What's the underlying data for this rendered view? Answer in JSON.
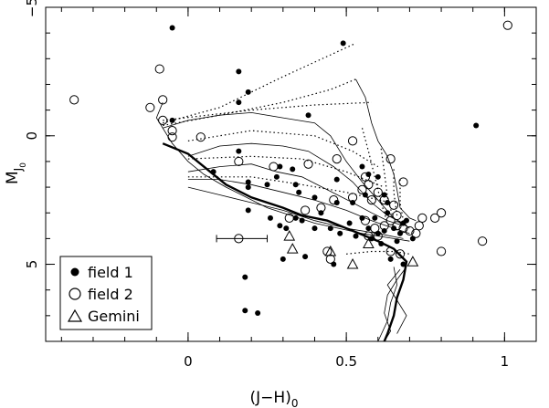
{
  "chart_data": {
    "type": "scatter",
    "title": "",
    "xlabel": "(J−H)",
    "xlabel_sub": "0",
    "ylabel": "M",
    "ylabel_sub": "J",
    "ylabel_subsub": "0",
    "xlim": [
      -0.45,
      1.1
    ],
    "ylim": [
      8,
      -5
    ],
    "y_inverted": true,
    "grid": false,
    "legend_position": "bottom-left",
    "x_ticks": [
      {
        "v": 0,
        "label": "0"
      },
      {
        "v": 0.5,
        "label": "0.5"
      },
      {
        "v": 1,
        "label": "1"
      }
    ],
    "y_ticks": [
      {
        "v": -5,
        "label": "−5"
      },
      {
        "v": 0,
        "label": "0"
      },
      {
        "v": 5,
        "label": "5"
      }
    ],
    "minor_x_step": 0.1,
    "minor_y_step": 1,
    "series": [
      {
        "name": "field 1",
        "marker": "filled-circle",
        "points": [
          [
            -0.05,
            -4.2
          ],
          [
            0.49,
            -3.6
          ],
          [
            0.16,
            -2.5
          ],
          [
            0.19,
            -1.7
          ],
          [
            0.16,
            -1.3
          ],
          [
            -0.05,
            -0.6
          ],
          [
            0.38,
            -0.8
          ],
          [
            0.91,
            -0.4
          ],
          [
            0.16,
            0.6
          ],
          [
            0.08,
            1.4
          ],
          [
            0.19,
            1.8
          ],
          [
            0.19,
            2.0
          ],
          [
            0.25,
            1.9
          ],
          [
            0.29,
            1.2
          ],
          [
            0.33,
            1.3
          ],
          [
            0.28,
            1.6
          ],
          [
            0.34,
            1.9
          ],
          [
            0.35,
            2.2
          ],
          [
            0.4,
            2.4
          ],
          [
            0.47,
            1.7
          ],
          [
            0.47,
            2.6
          ],
          [
            0.52,
            2.6
          ],
          [
            0.55,
            1.2
          ],
          [
            0.56,
            2.3
          ],
          [
            0.57,
            1.5
          ],
          [
            0.6,
            1.6
          ],
          [
            0.62,
            2.3
          ],
          [
            0.63,
            2.6
          ],
          [
            0.19,
            2.9
          ],
          [
            0.26,
            3.2
          ],
          [
            0.29,
            3.5
          ],
          [
            0.31,
            3.6
          ],
          [
            0.34,
            3.2
          ],
          [
            0.36,
            3.3
          ],
          [
            0.4,
            3.6
          ],
          [
            0.42,
            3.0
          ],
          [
            0.45,
            3.6
          ],
          [
            0.48,
            3.8
          ],
          [
            0.51,
            3.4
          ],
          [
            0.53,
            3.9
          ],
          [
            0.55,
            3.2
          ],
          [
            0.57,
            3.6
          ],
          [
            0.58,
            4.0
          ],
          [
            0.59,
            3.2
          ],
          [
            0.6,
            3.8
          ],
          [
            0.61,
            4.2
          ],
          [
            0.62,
            3.7
          ],
          [
            0.63,
            3.0
          ],
          [
            0.65,
            3.6
          ],
          [
            0.66,
            4.1
          ],
          [
            0.67,
            3.8
          ],
          [
            0.68,
            3.4
          ],
          [
            0.69,
            3.3
          ],
          [
            0.71,
            4.0
          ],
          [
            0.64,
            4.8
          ],
          [
            0.68,
            5.0
          ],
          [
            0.18,
            5.5
          ],
          [
            0.3,
            4.8
          ],
          [
            0.37,
            4.7
          ],
          [
            0.46,
            5.0
          ],
          [
            0.18,
            6.8
          ],
          [
            0.22,
            6.9
          ]
        ]
      },
      {
        "name": "field 2",
        "marker": "open-circle",
        "points": [
          [
            1.01,
            -4.3
          ],
          [
            -0.09,
            -2.6
          ],
          [
            -0.08,
            -1.4
          ],
          [
            -0.36,
            -1.4
          ],
          [
            -0.12,
            -1.1
          ],
          [
            -0.08,
            -0.6
          ],
          [
            -0.05,
            -0.2
          ],
          [
            -0.05,
            0.05
          ],
          [
            0.04,
            0.05
          ],
          [
            0.16,
            1.0
          ],
          [
            0.27,
            1.2
          ],
          [
            0.38,
            1.1
          ],
          [
            0.47,
            0.9
          ],
          [
            0.52,
            0.2
          ],
          [
            0.56,
            1.6
          ],
          [
            0.64,
            0.9
          ],
          [
            0.68,
            1.8
          ],
          [
            0.57,
            1.9
          ],
          [
            0.55,
            2.1
          ],
          [
            0.6,
            2.2
          ],
          [
            0.52,
            2.4
          ],
          [
            0.46,
            2.5
          ],
          [
            0.42,
            2.8
          ],
          [
            0.37,
            2.9
          ],
          [
            0.32,
            3.2
          ],
          [
            0.58,
            2.5
          ],
          [
            0.62,
            2.5
          ],
          [
            0.65,
            2.7
          ],
          [
            0.66,
            3.1
          ],
          [
            0.64,
            3.3
          ],
          [
            0.62,
            3.5
          ],
          [
            0.59,
            3.6
          ],
          [
            0.57,
            3.9
          ],
          [
            0.56,
            3.3
          ],
          [
            0.6,
            3.9
          ],
          [
            0.66,
            3.5
          ],
          [
            0.68,
            3.6
          ],
          [
            0.7,
            3.7
          ],
          [
            0.73,
            3.5
          ],
          [
            0.72,
            3.8
          ],
          [
            0.74,
            3.2
          ],
          [
            0.78,
            3.2
          ],
          [
            0.8,
            3.0
          ],
          [
            0.8,
            4.5
          ],
          [
            0.93,
            4.1
          ],
          [
            0.44,
            4.5
          ],
          [
            0.45,
            4.8
          ],
          [
            0.64,
            4.5
          ],
          [
            0.67,
            4.6
          ],
          [
            0.16,
            4.0
          ]
        ]
      },
      {
        "name": "Gemini",
        "marker": "open-triangle",
        "points": [
          [
            0.32,
            3.9
          ],
          [
            0.33,
            4.4
          ],
          [
            0.45,
            4.5
          ],
          [
            0.57,
            4.2
          ],
          [
            0.52,
            5.0
          ],
          [
            0.71,
            4.9
          ]
        ]
      }
    ],
    "error_bar": {
      "x": 0.16,
      "y": 4.0,
      "x_minus": 0.09,
      "x_plus": 0.25
    },
    "solid_curves": [
      [
        [
          -0.08,
          -1.3
        ],
        [
          -0.1,
          -0.7
        ],
        [
          -0.05,
          0.3
        ],
        [
          0.0,
          1.0
        ],
        [
          0.05,
          1.5
        ],
        [
          0.12,
          2.0
        ],
        [
          0.25,
          2.8
        ],
        [
          0.4,
          3.4
        ],
        [
          0.55,
          3.8
        ],
        [
          0.65,
          4.0
        ],
        [
          0.7,
          4.1
        ]
      ],
      [
        [
          -0.08,
          -0.3
        ],
        [
          0.0,
          -0.6
        ],
        [
          0.1,
          -0.8
        ],
        [
          0.2,
          -0.9
        ],
        [
          0.3,
          -0.7
        ],
        [
          0.4,
          -0.5
        ],
        [
          0.45,
          0.0
        ],
        [
          0.5,
          1.0
        ],
        [
          0.55,
          1.8
        ],
        [
          0.6,
          2.5
        ],
        [
          0.65,
          3.2
        ],
        [
          0.7,
          3.6
        ]
      ],
      [
        [
          0.0,
          0.8
        ],
        [
          0.1,
          0.4
        ],
        [
          0.2,
          0.3
        ],
        [
          0.3,
          0.4
        ],
        [
          0.38,
          0.6
        ],
        [
          0.46,
          1.2
        ],
        [
          0.52,
          1.8
        ],
        [
          0.58,
          2.6
        ],
        [
          0.63,
          3.1
        ],
        [
          0.68,
          3.4
        ]
      ],
      [
        [
          0.0,
          1.4
        ],
        [
          0.1,
          1.2
        ],
        [
          0.2,
          1.1
        ],
        [
          0.28,
          1.4
        ],
        [
          0.36,
          1.6
        ],
        [
          0.44,
          2.1
        ],
        [
          0.52,
          2.6
        ],
        [
          0.58,
          3.0
        ],
        [
          0.63,
          3.3
        ],
        [
          0.68,
          3.5
        ]
      ],
      [
        [
          0.0,
          1.7
        ],
        [
          0.1,
          1.7
        ],
        [
          0.2,
          1.9
        ],
        [
          0.3,
          2.2
        ],
        [
          0.4,
          2.5
        ],
        [
          0.5,
          2.9
        ],
        [
          0.58,
          3.3
        ],
        [
          0.65,
          3.6
        ],
        [
          0.7,
          3.8
        ]
      ],
      [
        [
          0.0,
          2.0
        ],
        [
          0.1,
          2.3
        ],
        [
          0.2,
          2.6
        ],
        [
          0.3,
          2.9
        ],
        [
          0.4,
          3.3
        ],
        [
          0.5,
          3.6
        ],
        [
          0.6,
          3.8
        ],
        [
          0.68,
          4.0
        ]
      ],
      [
        [
          0.53,
          -2.2
        ],
        [
          0.56,
          -1.5
        ],
        [
          0.58,
          -0.5
        ],
        [
          0.6,
          0.2
        ],
        [
          0.63,
          0.8
        ],
        [
          0.65,
          1.5
        ],
        [
          0.66,
          2.1
        ],
        [
          0.67,
          2.8
        ],
        [
          0.7,
          3.2
        ],
        [
          0.72,
          3.3
        ]
      ],
      [
        [
          0.65,
          5.1
        ],
        [
          0.66,
          5.8
        ],
        [
          0.64,
          6.5
        ],
        [
          0.63,
          7.2
        ],
        [
          0.6,
          8.0
        ]
      ],
      [
        [
          0.69,
          5.1
        ],
        [
          0.66,
          5.6
        ],
        [
          0.63,
          6.2
        ],
        [
          0.62,
          6.9
        ],
        [
          0.64,
          7.6
        ],
        [
          0.62,
          8.0
        ]
      ],
      [
        [
          0.67,
          5.2
        ],
        [
          0.63,
          5.8
        ],
        [
          0.66,
          6.4
        ],
        [
          0.69,
          7.0
        ],
        [
          0.66,
          7.7
        ]
      ]
    ],
    "thick_curve": [
      [
        -0.08,
        0.3
      ],
      [
        0.0,
        0.7
      ],
      [
        0.05,
        1.2
      ],
      [
        0.12,
        1.9
      ],
      [
        0.2,
        2.4
      ],
      [
        0.3,
        2.8
      ],
      [
        0.36,
        3.1
      ],
      [
        0.44,
        3.3
      ],
      [
        0.52,
        3.7
      ],
      [
        0.6,
        4.1
      ],
      [
        0.65,
        4.4
      ],
      [
        0.69,
        4.9
      ],
      [
        0.68,
        5.6
      ],
      [
        0.66,
        6.3
      ],
      [
        0.65,
        7.0
      ],
      [
        0.63,
        7.7
      ],
      [
        0.62,
        8.0
      ]
    ],
    "dotted_curves": [
      [
        [
          -0.08,
          -0.4
        ],
        [
          0.1,
          -0.8
        ],
        [
          0.3,
          -1.3
        ],
        [
          0.45,
          -1.8
        ],
        [
          0.53,
          -2.2
        ]
      ],
      [
        [
          -0.08,
          -0.5
        ],
        [
          0.1,
          -1.1
        ],
        [
          0.3,
          -2.3
        ],
        [
          0.53,
          -3.6
        ]
      ],
      [
        [
          -0.08,
          -0.6
        ],
        [
          0.2,
          -1.0
        ],
        [
          0.4,
          -1.2
        ],
        [
          0.58,
          -1.3
        ]
      ],
      [
        [
          0.0,
          0.2
        ],
        [
          0.2,
          -0.2
        ],
        [
          0.4,
          0.0
        ],
        [
          0.52,
          0.6
        ],
        [
          0.6,
          1.2
        ]
      ],
      [
        [
          0.0,
          0.9
        ],
        [
          0.2,
          0.8
        ],
        [
          0.36,
          0.9
        ],
        [
          0.5,
          1.4
        ],
        [
          0.62,
          2.0
        ]
      ],
      [
        [
          0.0,
          1.6
        ],
        [
          0.2,
          1.6
        ],
        [
          0.36,
          1.9
        ],
        [
          0.5,
          2.2
        ],
        [
          0.64,
          2.6
        ]
      ],
      [
        [
          0.55,
          -0.3
        ],
        [
          0.57,
          0.6
        ],
        [
          0.59,
          1.6
        ],
        [
          0.61,
          2.6
        ],
        [
          0.63,
          3.4
        ]
      ],
      [
        [
          0.61,
          0.5
        ],
        [
          0.62,
          1.4
        ],
        [
          0.63,
          2.4
        ],
        [
          0.65,
          3.3
        ]
      ],
      [
        [
          0.65,
          1.3
        ],
        [
          0.65,
          2.2
        ],
        [
          0.66,
          3.1
        ]
      ],
      [
        [
          0.67,
          1.7
        ],
        [
          0.67,
          2.6
        ],
        [
          0.68,
          3.3
        ]
      ],
      [
        [
          0.5,
          4.6
        ],
        [
          0.58,
          4.5
        ],
        [
          0.65,
          4.5
        ],
        [
          0.7,
          4.6
        ]
      ]
    ],
    "legend": [
      {
        "label": "field 1",
        "marker": "filled-circle"
      },
      {
        "label": "field 2",
        "marker": "open-circle"
      },
      {
        "label": "Gemini",
        "marker": "open-triangle"
      }
    ]
  }
}
